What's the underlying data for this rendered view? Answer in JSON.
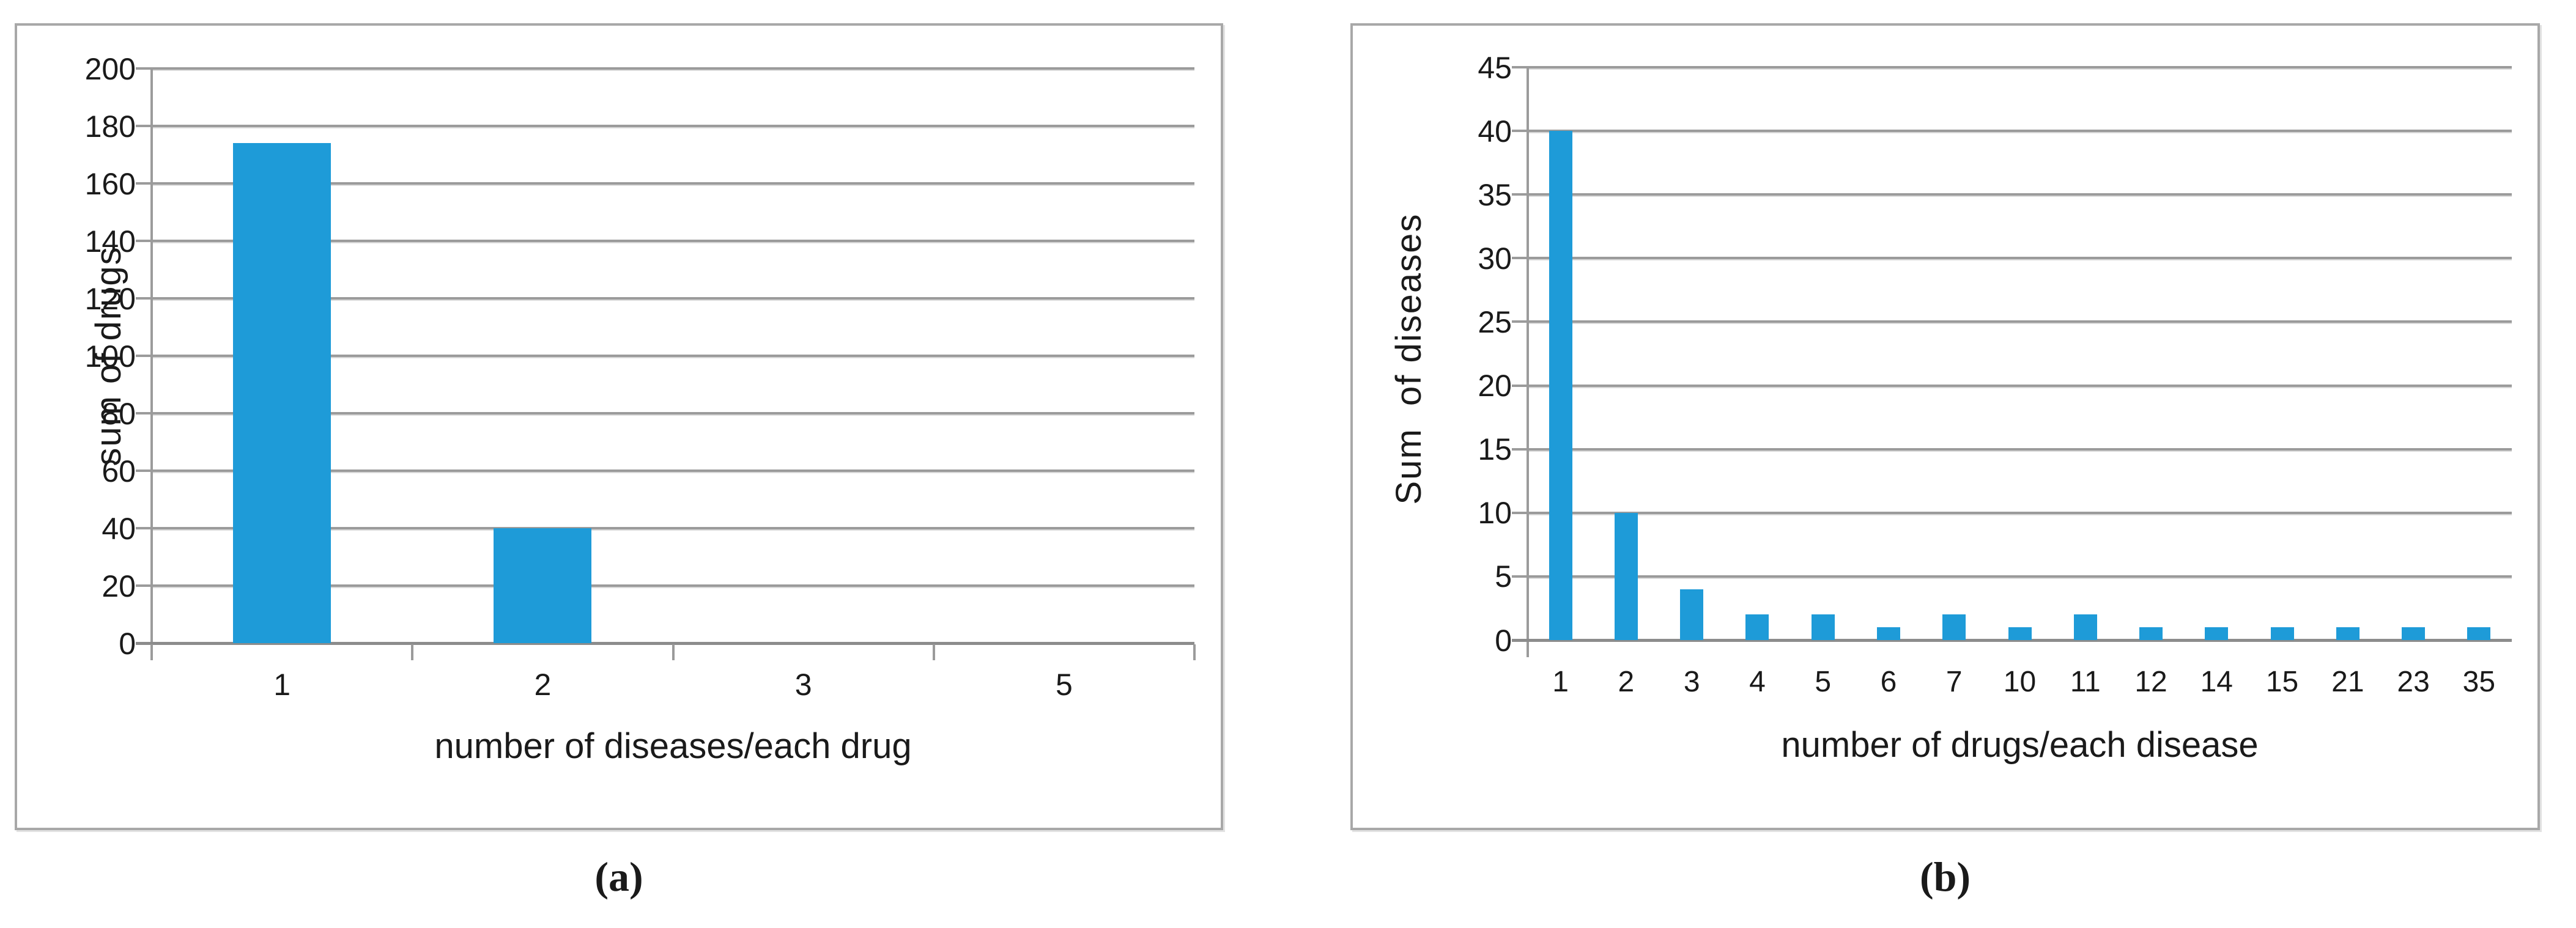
{
  "figure": {
    "caption_a": "(a)",
    "caption_b": "(b)"
  },
  "colors": {
    "bar": "#1e9bd8",
    "gridline": "#9b9b9b",
    "gridline_shadow": "#dadada",
    "axis": "#8c8c8c",
    "panel_border": "#a8a8a8",
    "text": "#1a1a1a",
    "background": "#ffffff"
  },
  "chart_data": [
    {
      "type": "bar",
      "panel_label": "(a)",
      "title": "",
      "ylabel": "sum of drugs",
      "xlabel": "number of diseases/each drug",
      "categories": [
        "1",
        "2",
        "3",
        "5"
      ],
      "values": [
        174,
        40,
        0,
        0
      ],
      "ylim": [
        0,
        200
      ],
      "ytick_step": 20,
      "yticks": [
        "0",
        "20",
        "40",
        "60",
        "80",
        "100",
        "120",
        "140",
        "160",
        "180",
        "200"
      ],
      "grid": true,
      "legend": null,
      "bar_color": "#1e9bd8"
    },
    {
      "type": "bar",
      "panel_label": "(b)",
      "title": "",
      "ylabel": "Sum  of diseases",
      "xlabel": "number of drugs/each disease",
      "categories": [
        "1",
        "2",
        "3",
        "4",
        "5",
        "6",
        "7",
        "10",
        "11",
        "12",
        "14",
        "15",
        "21",
        "23",
        "35"
      ],
      "values": [
        40,
        10,
        4,
        2,
        2,
        1,
        2,
        1,
        2,
        1,
        1,
        1,
        1,
        1,
        1
      ],
      "ylim": [
        0,
        45
      ],
      "ytick_step": 5,
      "yticks": [
        "0",
        "5",
        "10",
        "15",
        "20",
        "25",
        "30",
        "35",
        "40",
        "45"
      ],
      "grid": true,
      "legend": null,
      "bar_color": "#1e9bd8"
    }
  ]
}
